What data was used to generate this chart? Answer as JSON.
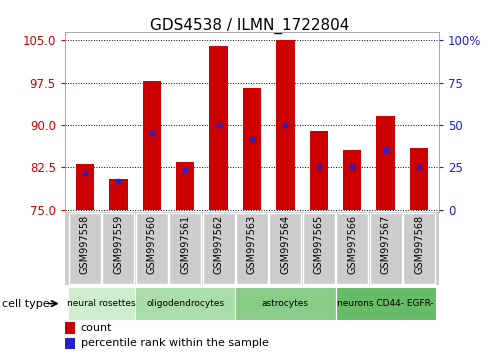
{
  "title": "GDS4538 / ILMN_1722804",
  "samples": [
    "GSM997558",
    "GSM997559",
    "GSM997560",
    "GSM997561",
    "GSM997562",
    "GSM997563",
    "GSM997564",
    "GSM997565",
    "GSM997566",
    "GSM997567",
    "GSM997568"
  ],
  "bar_tops": [
    83.0,
    80.5,
    97.8,
    83.5,
    104.0,
    96.5,
    105.0,
    89.0,
    85.5,
    91.5,
    86.0
  ],
  "blue_dots": [
    81.5,
    80.0,
    88.5,
    82.0,
    90.0,
    87.5,
    90.0,
    82.5,
    82.5,
    85.5,
    82.5
  ],
  "bar_bottom": 75.0,
  "ylim_left": [
    74.5,
    106.5
  ],
  "yticks_left": [
    75,
    82.5,
    90,
    97.5,
    105
  ],
  "yticks_right_labels": [
    "0",
    "25",
    "50",
    "75",
    "100%"
  ],
  "yticks_right_vals": [
    0,
    25,
    50,
    75,
    100
  ],
  "ylabel_left_color": "#cc0000",
  "ylabel_right_color": "#2222cc",
  "bar_color": "#cc0000",
  "dot_color": "#2222cc",
  "cell_types": [
    {
      "label": "neural rosettes",
      "start": 0,
      "end": 1,
      "color": "#cceecc"
    },
    {
      "label": "oligodendrocytes",
      "start": 2,
      "end": 4,
      "color": "#aaddaa"
    },
    {
      "label": "astrocytes",
      "start": 5,
      "end": 7,
      "color": "#88cc88"
    },
    {
      "label": "neurons CD44- EGFR-",
      "start": 8,
      "end": 10,
      "color": "#66bb66"
    }
  ],
  "cell_type_label": "cell type",
  "legend_count": "count",
  "legend_percentile": "percentile rank within the sample"
}
